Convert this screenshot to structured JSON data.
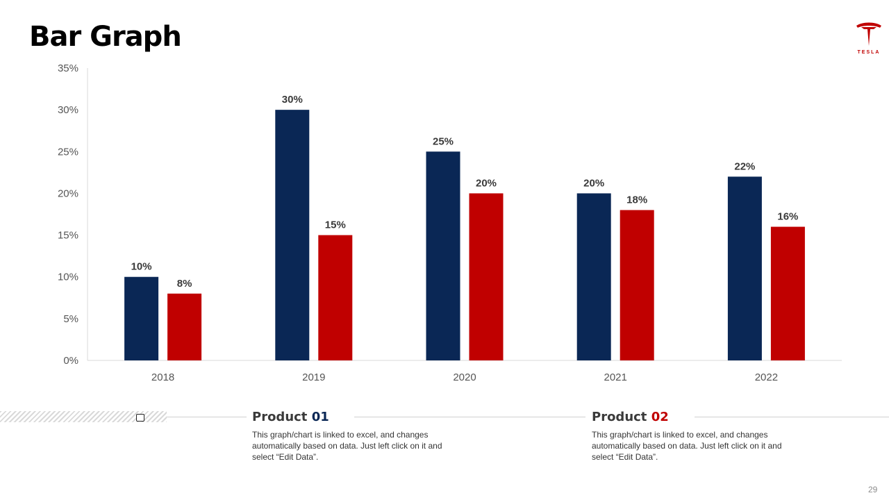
{
  "page": {
    "title": "Bar Graph",
    "page_number": "29"
  },
  "logo": {
    "name": "tesla-logo-icon",
    "text": "TESLA",
    "color": "#c00000"
  },
  "chart_data": {
    "type": "bar",
    "title": "",
    "xlabel": "",
    "ylabel": "",
    "categories": [
      "2018",
      "2019",
      "2020",
      "2021",
      "2022"
    ],
    "ylim": [
      0,
      35
    ],
    "yticks": [
      0,
      5,
      10,
      15,
      20,
      25,
      30,
      35
    ],
    "ytick_labels": [
      "0%",
      "5%",
      "10%",
      "15%",
      "20%",
      "25%",
      "30%",
      "35%"
    ],
    "value_suffix": "%",
    "grid": false,
    "legend": "none",
    "series": [
      {
        "name": "Product 01",
        "color": "#0a2755",
        "values": [
          10,
          30,
          25,
          20,
          22
        ]
      },
      {
        "name": "Product 02",
        "color": "#c00000",
        "values": [
          8,
          15,
          20,
          18,
          16
        ]
      }
    ]
  },
  "products": [
    {
      "label": "Product",
      "number": "01",
      "description": "This graph/chart is linked to excel, and changes automatically based on data. Just left click on it and select “Edit Data”."
    },
    {
      "label": "Product",
      "number": "02",
      "description": "This graph/chart is linked to excel, and changes automatically based on data. Just left click on it and select “Edit Data”."
    }
  ]
}
